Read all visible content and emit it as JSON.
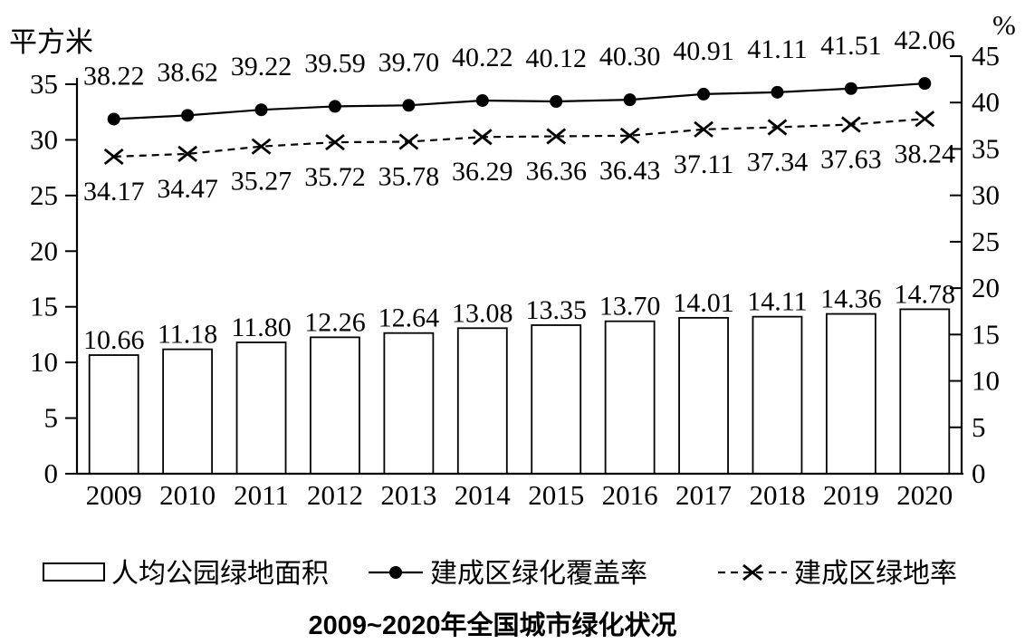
{
  "chart_data": {
    "type": "bar+line",
    "title": "2009~2020年全国城市绿化状况",
    "grid": false,
    "legend_position": "bottom",
    "colors": {
      "foreground": "#000000",
      "background": "#ffffff"
    },
    "left_axis": {
      "unit": "平方米",
      "min": 0,
      "max": 35,
      "tick_step": 5
    },
    "right_axis": {
      "unit": "%",
      "min": 0,
      "max": 45,
      "tick_step": 5
    },
    "categories": [
      "2009",
      "2010",
      "2011",
      "2012",
      "2013",
      "2014",
      "2015",
      "2016",
      "2017",
      "2018",
      "2019",
      "2020"
    ],
    "series": [
      {
        "name": "人均公园绿地面积",
        "type": "bar",
        "axis": "left",
        "marker": "none",
        "line_style": "none",
        "values": [
          10.66,
          11.18,
          11.8,
          12.26,
          12.64,
          13.08,
          13.35,
          13.7,
          14.01,
          14.11,
          14.36,
          14.78
        ]
      },
      {
        "name": "建成区绿化覆盖率",
        "type": "line",
        "axis": "right",
        "marker": "dot",
        "line_style": "solid",
        "values": [
          38.22,
          38.62,
          39.22,
          39.59,
          39.7,
          40.22,
          40.12,
          40.3,
          40.91,
          41.11,
          41.51,
          42.06
        ]
      },
      {
        "name": "建成区绿地率",
        "type": "line",
        "axis": "right",
        "marker": "x",
        "line_style": "dashed",
        "values": [
          34.17,
          34.47,
          35.27,
          35.72,
          35.78,
          36.29,
          36.36,
          36.43,
          37.11,
          37.34,
          37.63,
          38.24
        ]
      }
    ]
  }
}
